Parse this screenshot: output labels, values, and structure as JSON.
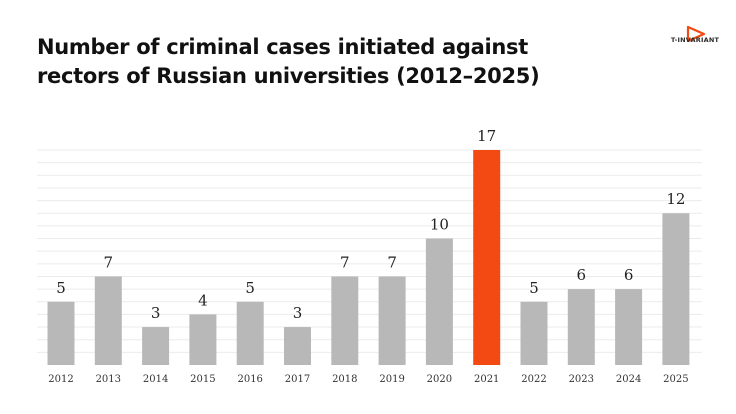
{
  "chart_data": {
    "type": "bar",
    "title": "Number of criminal cases initiated against rectors of Russian universities (2012–2025)",
    "categories": [
      "2012",
      "2013",
      "2014",
      "2015",
      "2016",
      "2017",
      "2018",
      "2019",
      "2020",
      "2021",
      "2022",
      "2023",
      "2024",
      "2025"
    ],
    "values": [
      5,
      7,
      3,
      4,
      5,
      3,
      7,
      7,
      10,
      17,
      5,
      6,
      6,
      12
    ],
    "highlight_category": "2021",
    "ylim": [
      0,
      17
    ],
    "grid": true,
    "colors": {
      "bar": "#b8b8b8",
      "highlight": "#f24a12",
      "grid": "#ebebeb"
    }
  },
  "logo": {
    "text": "T-INVARIANT",
    "icon": "play-triangle-icon",
    "color": "#f24a12"
  }
}
